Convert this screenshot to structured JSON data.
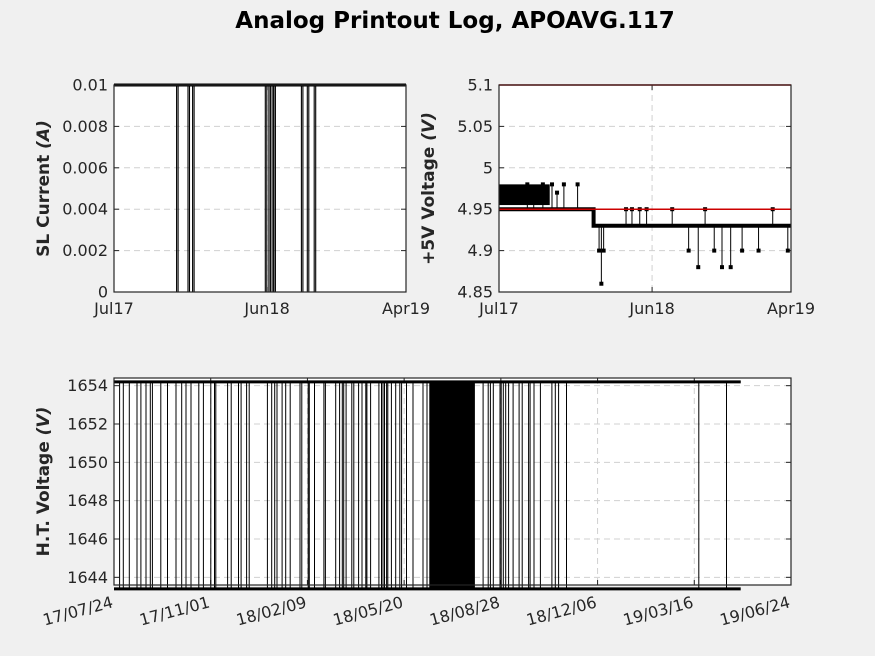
{
  "title": "Analog Printout Log, APOAVG.117",
  "chart_data": [
    {
      "type": "line",
      "name": "sl-current",
      "ylabel": "SL Current",
      "yunit": "(A)",
      "ylim": [
        0,
        0.01
      ],
      "yticks": [
        "0",
        "0.002",
        "0.004",
        "0.006",
        "0.008",
        "0.01"
      ],
      "yticks_values": [
        0,
        0.002,
        0.004,
        0.006,
        0.008,
        0.01
      ],
      "xlim": [
        "2017-07-01",
        "2019-04-01"
      ],
      "xticks": [
        "Jul17",
        "Jun18",
        "Apr19"
      ],
      "xticks_dates": [
        "2017-07-01",
        "2018-06-01",
        "2019-04-01"
      ],
      "grid": true,
      "baseline": 0.01,
      "dips_dates": [
        "2017-11-15",
        "2017-12-10",
        "2017-12-20",
        "2018-05-28",
        "2018-06-05",
        "2018-06-12",
        "2018-06-16",
        "2018-08-15",
        "2018-08-28",
        "2018-09-12"
      ],
      "color": "#000000"
    },
    {
      "type": "line",
      "name": "plus5v-voltage",
      "ylabel": "+5V Voltage",
      "yunit": "(V)",
      "ylim": [
        4.85,
        5.1
      ],
      "yticks": [
        "4.85",
        "4.9",
        "4.95",
        "5",
        "5.05",
        "5.1"
      ],
      "yticks_values": [
        4.85,
        4.9,
        4.95,
        5.0,
        5.05,
        5.1
      ],
      "xlim": [
        "2017-07-01",
        "2019-04-01"
      ],
      "xticks": [
        "Jul17",
        "Jun18",
        "Apr19"
      ],
      "xticks_dates": [
        "2017-07-01",
        "2018-06-01",
        "2019-04-01"
      ],
      "grid": true,
      "limit_lines": [
        5.1,
        4.95
      ],
      "limit_color": "#cc0000",
      "level_high": 4.95,
      "level_low": 4.93,
      "level_switch_date": "2018-01-24",
      "excursions": [
        {
          "date": "2017-09-01",
          "value": 4.98
        },
        {
          "date": "2017-09-15",
          "value": 4.97
        },
        {
          "date": "2017-10-05",
          "value": 4.98
        },
        {
          "date": "2017-10-25",
          "value": 4.98
        },
        {
          "date": "2017-11-05",
          "value": 4.97
        },
        {
          "date": "2017-11-20",
          "value": 4.98
        },
        {
          "date": "2017-12-20",
          "value": 4.98
        },
        {
          "date": "2018-02-05",
          "value": 4.9
        },
        {
          "date": "2018-02-10",
          "value": 4.86
        },
        {
          "date": "2018-02-15",
          "value": 4.9
        },
        {
          "date": "2018-04-05",
          "value": 4.95
        },
        {
          "date": "2018-04-18",
          "value": 4.95
        },
        {
          "date": "2018-05-05",
          "value": 4.95
        },
        {
          "date": "2018-05-20",
          "value": 4.95
        },
        {
          "date": "2018-07-15",
          "value": 4.95
        },
        {
          "date": "2018-08-20",
          "value": 4.9
        },
        {
          "date": "2018-09-10",
          "value": 4.88
        },
        {
          "date": "2018-09-25",
          "value": 4.95
        },
        {
          "date": "2018-10-15",
          "value": 4.9
        },
        {
          "date": "2018-11-01",
          "value": 4.88
        },
        {
          "date": "2018-11-20",
          "value": 4.88
        },
        {
          "date": "2018-12-15",
          "value": 4.9
        },
        {
          "date": "2019-01-20",
          "value": 4.9
        },
        {
          "date": "2019-02-20",
          "value": 4.95
        },
        {
          "date": "2019-03-25",
          "value": 4.9
        }
      ],
      "color": "#000000"
    },
    {
      "type": "line",
      "name": "ht-voltage",
      "ylabel": "H.T. Voltage",
      "yunit": "(V)",
      "ylim": [
        1643.6,
        1654.4
      ],
      "yticks": [
        "1644",
        "1646",
        "1648",
        "1650",
        "1652",
        "1654"
      ],
      "yticks_values": [
        1644,
        1646,
        1648,
        1650,
        1652,
        1654
      ],
      "xlim": [
        "2017-07-24",
        "2019-06-24"
      ],
      "xticks": [
        "17/07/24",
        "17/11/01",
        "18/02/09",
        "18/05/20",
        "18/08/28",
        "18/12/06",
        "19/03/16",
        "19/06/24"
      ],
      "xticks_dates": [
        "2017-07-24",
        "2017-11-01",
        "2018-02-09",
        "2018-05-20",
        "2018-08-28",
        "2018-12-06",
        "2019-03-16",
        "2019-06-24"
      ],
      "grid": true,
      "high_level": 1654.2,
      "low_level": 1643.4,
      "data_end_date": "2019-05-03",
      "dense_band": [
        "2018-06-15",
        "2018-08-01"
      ],
      "color": "#000000"
    }
  ]
}
